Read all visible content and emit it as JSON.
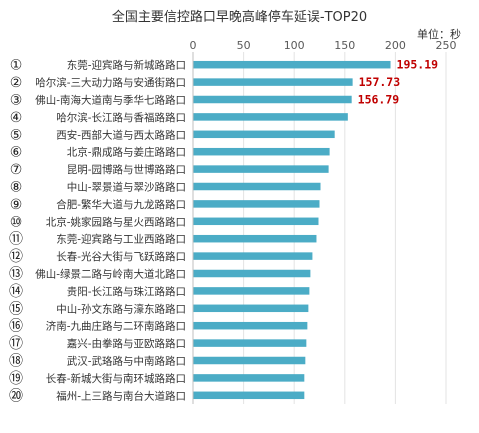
{
  "chart_data": {
    "type": "bar",
    "orientation": "horizontal",
    "title": "全国主要信控路口早晚高峰停车延误-TOP20",
    "unit_label": "单位：秒",
    "xlim": [
      0,
      250
    ],
    "x_ticks": [
      "0",
      "50",
      "100",
      "150",
      "200",
      "250"
    ],
    "grid": true,
    "bar_color": "#4BACC6",
    "value_label_color": "#C00000",
    "categories": [
      {
        "rank": "①",
        "name": "东莞-迎宾路与新城路路口"
      },
      {
        "rank": "②",
        "name": "哈尔滨-三大动力路与安通街路口"
      },
      {
        "rank": "③",
        "name": "佛山-南海大道南与季华七路路口"
      },
      {
        "rank": "④",
        "name": "哈尔滨-长江路与香福路路口"
      },
      {
        "rank": "⑤",
        "name": "西安-西部大道与西太路路口"
      },
      {
        "rank": "⑥",
        "name": "北京-鼎成路与姜庄路路口"
      },
      {
        "rank": "⑦",
        "name": "昆明-园博路与世博路路口"
      },
      {
        "rank": "⑧",
        "name": "中山-翠景道与翠沙路路口"
      },
      {
        "rank": "⑨",
        "name": "合肥-繁华大道与九龙路路口"
      },
      {
        "rank": "⑩",
        "name": "北京-姚家园路与星火西路路口"
      },
      {
        "rank": "⑪",
        "name": "东莞-迎宾路与工业西路路口"
      },
      {
        "rank": "⑫",
        "name": "长春-光谷大街与飞跃路路口"
      },
      {
        "rank": "⑬",
        "name": "佛山-绿景二路与岭南大道北路口"
      },
      {
        "rank": "⑭",
        "name": "贵阳-长江路与珠江路路口"
      },
      {
        "rank": "⑮",
        "name": "中山-孙文东路与濠东路路口"
      },
      {
        "rank": "⑯",
        "name": "济南-九曲庄路与二环南路路口"
      },
      {
        "rank": "⑰",
        "name": "嘉兴-由拳路与亚欧路路口"
      },
      {
        "rank": "⑱",
        "name": "武汉-武珞路与中南路路口"
      },
      {
        "rank": "⑲",
        "name": "长春-新城大街与南环城路路口"
      },
      {
        "rank": "⑳",
        "name": "福州-上三路与南台大道路口"
      }
    ],
    "values": [
      195.19,
      157.73,
      156.79,
      153,
      140,
      135,
      134,
      126,
      125,
      124,
      122,
      118,
      116,
      115,
      114,
      113,
      112,
      111,
      110,
      110
    ],
    "value_labels": [
      "195.19",
      "157.73",
      "156.79",
      "",
      "",
      "",
      "",
      "",
      "",
      "",
      "",
      "",
      "",
      "",
      "",
      "",
      "",
      "",
      "",
      ""
    ]
  }
}
